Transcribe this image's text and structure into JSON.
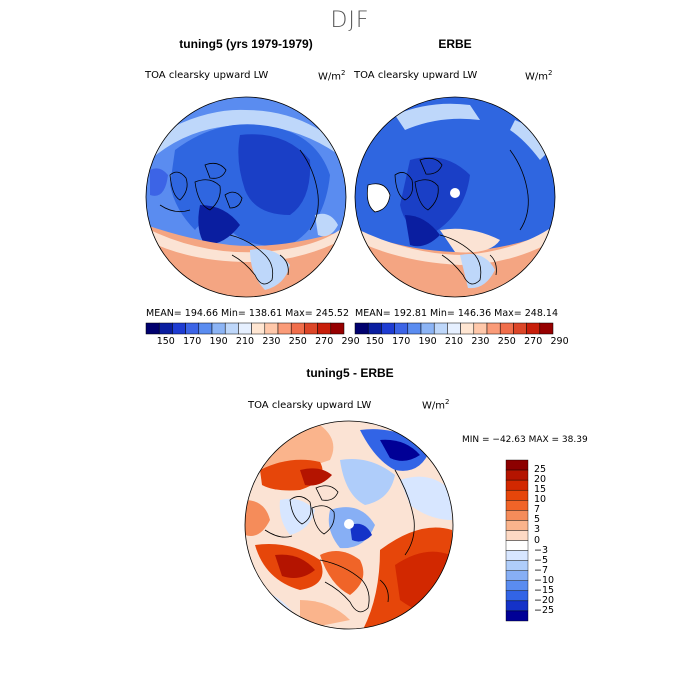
{
  "title": "DJF",
  "panels": [
    {
      "heading": "tuning5 (yrs 1979-1979)",
      "variable": "TOA clearsky upward LW",
      "units_base": "W/m",
      "units_exp": "2",
      "stats": "MEAN= 194.66   Min= 138.61   Max= 245.52"
    },
    {
      "heading": "ERBE",
      "variable": "TOA clearsky upward LW",
      "units_base": "W/m",
      "units_exp": "2",
      "stats": "MEAN= 192.81   Min= 146.36   Max= 248.14"
    }
  ],
  "shared_colorbar": {
    "tick_labels": [
      "150",
      "170",
      "190",
      "210",
      "230",
      "250",
      "270",
      "290"
    ],
    "colors": [
      "#00006e",
      "#0a1ea0",
      "#1e3cd2",
      "#3c64e6",
      "#5a8cf0",
      "#8cb4f5",
      "#bed7fa",
      "#e6f0ff",
      "#ffe6d2",
      "#ffc8aa",
      "#fa9b78",
      "#f06e4b",
      "#dc4628",
      "#c81e0a",
      "#960000"
    ]
  },
  "difference": {
    "heading": "tuning5 - ERBE",
    "variable": "TOA clearsky upward LW",
    "units_base": "W/m",
    "units_exp": "2",
    "stats": "MIN = −42.63  MAX =  38.39",
    "colorbar_labels": [
      "25",
      "20",
      "15",
      "10",
      "7",
      "5",
      "3",
      "0",
      "−3",
      "−5",
      "−7",
      "−10",
      "−15",
      "−20",
      "−25"
    ],
    "colorbar_colors": [
      "#8c0000",
      "#b41400",
      "#d22800",
      "#e6460a",
      "#f06428",
      "#f58c5a",
      "#fab48c",
      "#fdd9c4",
      "#ffffff",
      "#d7e6ff",
      "#afcdfa",
      "#87aff5",
      "#5a8cf0",
      "#3264e6",
      "#1432c8",
      "#000096"
    ]
  },
  "colors": {
    "ocean_blue": "#2f66e0",
    "deep_blue": "#1a3fc6",
    "warm": "#f4a582",
    "pale": "#fbe3d4"
  }
}
